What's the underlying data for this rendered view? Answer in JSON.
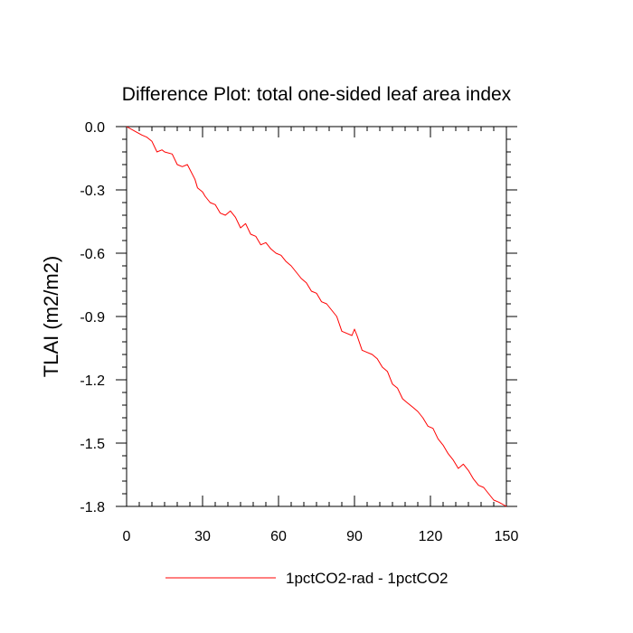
{
  "chart_data": {
    "type": "line",
    "title": "Difference Plot: total one-sided leaf area index",
    "xlabel": "",
    "ylabel": "TLAI  (m2/m2)",
    "xlim": [
      0,
      150
    ],
    "ylim": [
      -1.8,
      0.0
    ],
    "xticks": [
      0,
      30,
      60,
      90,
      120,
      150
    ],
    "xtick_labels": [
      "0",
      "30",
      "60",
      "90",
      "120",
      "150"
    ],
    "yticks": [
      0.0,
      -0.3,
      -0.6,
      -0.9,
      -1.2,
      -1.5,
      -1.8
    ],
    "ytick_labels": [
      "0.0",
      "-0.3",
      "-0.6",
      "-0.9",
      "-1.2",
      "-1.5",
      "-1.8"
    ],
    "grid": false,
    "legend_position": "bottom-center",
    "series": [
      {
        "name": "1pctCO2-rad - 1pctCO2",
        "color": "#ff0000",
        "x": [
          0,
          3,
          6,
          8,
          10,
          12,
          14,
          15,
          18,
          20,
          22,
          24,
          27,
          28,
          30,
          31,
          33,
          35,
          37,
          39,
          41,
          43,
          45,
          47,
          49,
          51,
          53,
          55,
          57,
          59,
          61,
          63,
          65,
          67,
          69,
          71,
          73,
          75,
          77,
          79,
          81,
          83,
          85,
          87,
          89,
          90,
          91,
          93,
          95,
          97,
          99,
          101,
          103,
          105,
          107,
          109,
          111,
          113,
          115,
          117,
          119,
          121,
          123,
          125,
          127,
          129,
          131,
          133,
          135,
          137,
          139,
          141,
          143,
          145,
          147,
          150
        ],
        "y": [
          0.0,
          -0.02,
          -0.04,
          -0.05,
          -0.07,
          -0.12,
          -0.11,
          -0.12,
          -0.13,
          -0.18,
          -0.19,
          -0.18,
          -0.25,
          -0.29,
          -0.31,
          -0.33,
          -0.36,
          -0.37,
          -0.41,
          -0.42,
          -0.4,
          -0.43,
          -0.48,
          -0.46,
          -0.51,
          -0.52,
          -0.56,
          -0.55,
          -0.58,
          -0.6,
          -0.61,
          -0.64,
          -0.66,
          -0.69,
          -0.72,
          -0.74,
          -0.78,
          -0.79,
          -0.83,
          -0.84,
          -0.87,
          -0.9,
          -0.97,
          -0.98,
          -0.99,
          -0.96,
          -0.99,
          -1.06,
          -1.07,
          -1.08,
          -1.1,
          -1.14,
          -1.16,
          -1.22,
          -1.24,
          -1.29,
          -1.31,
          -1.33,
          -1.35,
          -1.38,
          -1.42,
          -1.43,
          -1.48,
          -1.51,
          -1.55,
          -1.58,
          -1.62,
          -1.6,
          -1.63,
          -1.67,
          -1.7,
          -1.71,
          -1.74,
          -1.77,
          -1.78,
          -1.8
        ]
      }
    ]
  }
}
